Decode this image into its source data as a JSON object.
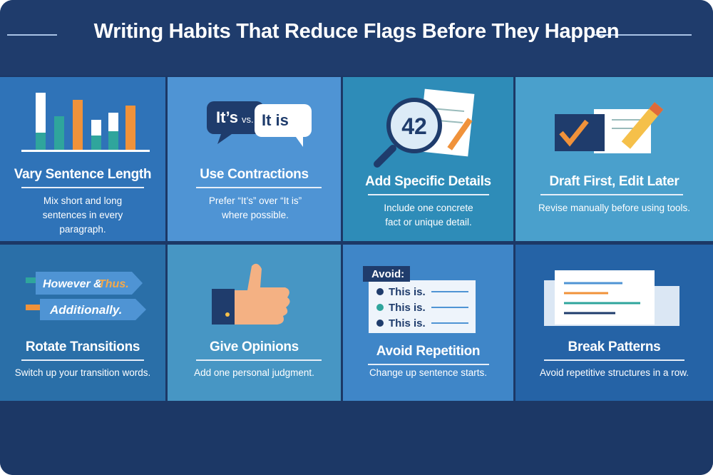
{
  "header": {
    "title": "Writing Habits That Reduce Flags Before They Happen"
  },
  "cards": [
    {
      "title": "Vary Sentence Length",
      "description": "Mix short and long sentences in every paragraph."
    },
    {
      "title": "Use Contractions",
      "description": "Prefer “It’s” over “It is” where possible.",
      "icon_texts": [
        "It’s",
        "vs.",
        "It is"
      ]
    },
    {
      "title": "Add Specific Details",
      "description": "Include one concrete fact or unique detail.",
      "icon_texts": [
        "42"
      ]
    },
    {
      "title": "Draft First, Edit Later",
      "description": "Revise manually before using tools."
    },
    {
      "title": "Rotate Transitions",
      "description": "Switch up your transition words.",
      "icon_texts": [
        "However &",
        "Thus.",
        "Additionally."
      ]
    },
    {
      "title": "Give Opinions",
      "description": "Add one personal judgment."
    },
    {
      "title": "Avoid Repetition",
      "description": "Change up sentence starts.",
      "icon_texts": [
        "Avoid:",
        "This is.",
        "This is.",
        "This is."
      ]
    },
    {
      "title": "Break Patterns",
      "description": "Avoid repetitive structures in a row."
    }
  ]
}
